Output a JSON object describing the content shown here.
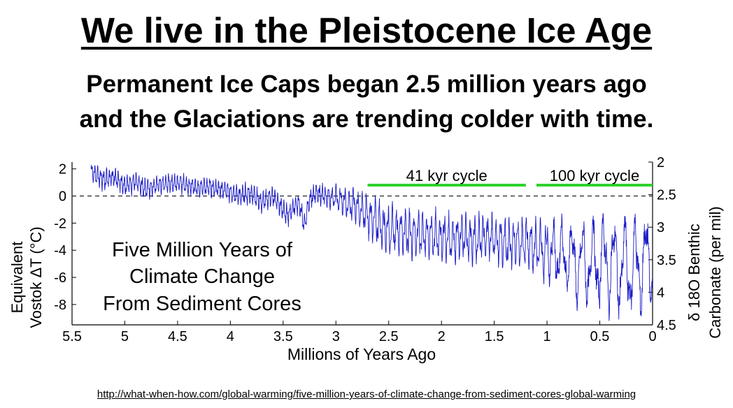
{
  "header": {
    "title": "We live in the Pleistocene Ice Age",
    "subtitle_line1": "Permanent Ice Caps began 2.5 million years ago",
    "subtitle_line2": "and the Glaciations are trending colder with time."
  },
  "source_url": "http://what-when-how.com/global-warming/five-million-years-of-climate-change-from-sediment-cores-global-warming",
  "chart_data": {
    "type": "line",
    "title": "",
    "annotation_lines": [
      "Five Million Years of",
      "Climate Change",
      "From Sediment Cores"
    ],
    "xlabel": "Millions of Years Ago",
    "ylabel_lines": [
      "Equivalent",
      "Vostok ΔT (°C)"
    ],
    "y2label_lines": [
      "δ 18O Benthic",
      "Carbonate (per mil)"
    ],
    "xlim": [
      5.5,
      0
    ],
    "ylim": [
      -9.5,
      2.5
    ],
    "y2lim": [
      4.5,
      2
    ],
    "xticks": [
      5.5,
      5,
      4.5,
      4,
      3.5,
      3,
      2.5,
      2,
      1.5,
      1,
      0.5,
      0
    ],
    "xtick_labels": [
      "5.5",
      "5",
      "4.5",
      "4",
      "3.5",
      "3",
      "2.5",
      "2",
      "1.5",
      "1",
      "0.5",
      "0"
    ],
    "yticks": [
      2,
      0,
      -2,
      -4,
      -6,
      -8
    ],
    "ytick_labels": [
      "2",
      "0",
      "-2",
      "-4",
      "-6",
      "-8"
    ],
    "y2ticks": [
      2,
      2.5,
      3,
      3.5,
      4,
      4.5
    ],
    "y2tick_labels": [
      "2",
      "2.5",
      "3",
      "3.5",
      "4",
      "4.5"
    ],
    "reference_line": {
      "y": 0,
      "style": "dashed"
    },
    "cycle_bars": [
      {
        "label": "41 kyr cycle",
        "x_start": 2.7,
        "x_end": 1.2
      },
      {
        "label": "100 kyr cycle",
        "x_start": 1.1,
        "x_end": 0.0
      }
    ],
    "series": [
      {
        "name": "Equivalent Vostok ΔT",
        "color": "#1c1cc8",
        "x": [
          5.32,
          5.2,
          5.1,
          5.0,
          4.9,
          4.8,
          4.7,
          4.6,
          4.5,
          4.4,
          4.3,
          4.2,
          4.1,
          4.0,
          3.9,
          3.8,
          3.7,
          3.6,
          3.5,
          3.45,
          3.4,
          3.35,
          3.3,
          3.25,
          3.2,
          3.1,
          3.0,
          2.9,
          2.8,
          2.7,
          2.6,
          2.5,
          2.4,
          2.3,
          2.2,
          2.1,
          2.0,
          1.9,
          1.8,
          1.7,
          1.6,
          1.5,
          1.4,
          1.3,
          1.2,
          1.1,
          1.0,
          0.9,
          0.8,
          0.7,
          0.6,
          0.5,
          0.4,
          0.3,
          0.2,
          0.1,
          0.0
        ],
        "y": [
          1.8,
          1.2,
          1.4,
          0.8,
          1.0,
          0.5,
          0.8,
          0.9,
          1.0,
          0.8,
          0.6,
          0.7,
          0.5,
          0.3,
          0.0,
          0.2,
          -0.5,
          0.0,
          -1.0,
          -1.5,
          -0.8,
          -0.5,
          -2.2,
          -0.3,
          0.2,
          0.0,
          -0.2,
          -0.5,
          -0.8,
          -1.5,
          -2.0,
          -2.5,
          -2.5,
          -2.8,
          -2.8,
          -2.9,
          -3.0,
          -3.2,
          -3.0,
          -3.3,
          -3.0,
          -3.2,
          -3.5,
          -3.5,
          -3.3,
          -3.8,
          -4.0,
          -4.2,
          -4.5,
          -5.0,
          -5.0,
          -4.8,
          -5.0,
          -5.2,
          -5.3,
          -5.0,
          -4.5
        ],
        "amplitude": [
          1.0,
          1.0,
          1.0,
          1.0,
          1.0,
          1.0,
          0.9,
          0.9,
          0.9,
          0.9,
          0.9,
          0.9,
          0.9,
          0.9,
          1.0,
          1.0,
          1.0,
          1.0,
          1.0,
          1.0,
          1.0,
          1.0,
          1.0,
          1.0,
          1.0,
          1.0,
          1.2,
          1.4,
          1.8,
          2.0,
          2.2,
          2.2,
          2.2,
          2.2,
          2.2,
          2.2,
          2.2,
          2.2,
          2.2,
          2.2,
          2.2,
          2.2,
          2.3,
          2.4,
          2.5,
          2.6,
          2.8,
          3.2,
          3.5,
          3.8,
          4.2,
          4.5,
          4.5,
          4.5,
          4.6,
          4.6,
          4.3
        ],
        "period": [
          0.028,
          0.028,
          0.028,
          0.028,
          0.028,
          0.028,
          0.028,
          0.028,
          0.028,
          0.028,
          0.028,
          0.028,
          0.028,
          0.028,
          0.028,
          0.028,
          0.028,
          0.028,
          0.028,
          0.028,
          0.028,
          0.028,
          0.028,
          0.028,
          0.028,
          0.028,
          0.041,
          0.041,
          0.041,
          0.041,
          0.041,
          0.041,
          0.041,
          0.041,
          0.041,
          0.041,
          0.041,
          0.041,
          0.041,
          0.041,
          0.041,
          0.041,
          0.041,
          0.041,
          0.041,
          0.045,
          0.06,
          0.08,
          0.1,
          0.1,
          0.1,
          0.1,
          0.1,
          0.1,
          0.1,
          0.1,
          0.1
        ]
      }
    ],
    "cycle_bar_color": "#2fd22f",
    "reference_color": "#333333",
    "axis_color": "#000000"
  }
}
